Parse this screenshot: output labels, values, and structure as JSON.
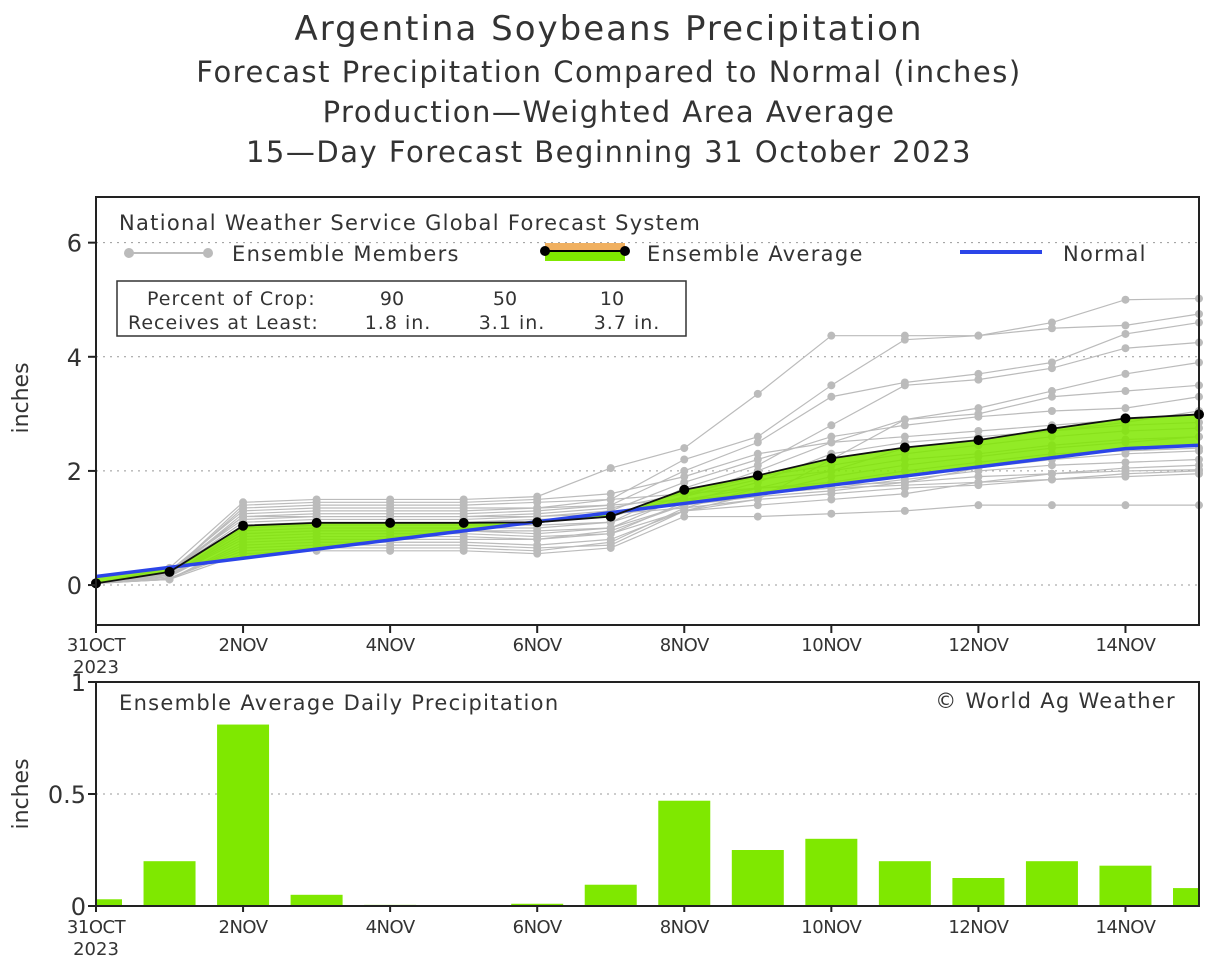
{
  "header": {
    "title": "Argentina Soybeans Precipitation",
    "subtitle1": "Forecast Precipitation Compared to Normal (inches)",
    "subtitle2": "Production—Weighted Area Average",
    "subtitle3": "15—Day Forecast Beginning 31 October 2023"
  },
  "colors": {
    "green": "#7FE800",
    "normal_blue": "#2B45E8",
    "member_gray": "#BBBBBB",
    "avg_orange": "#F0B060",
    "grid": "#999999"
  },
  "chart_data": [
    {
      "type": "line",
      "model_label": "National Weather Service Global Forecast System",
      "legend": {
        "members": "Ensemble Members",
        "average": "Ensemble Average",
        "normal": "Normal"
      },
      "crop_box": {
        "row1_label": "Percent of Crop:",
        "row2_label": "Receives at Least:",
        "percents": [
          "90",
          "50",
          "10"
        ],
        "amounts": [
          "1.8 in.",
          "3.1 in.",
          "3.7 in."
        ]
      },
      "ylabel": "inches",
      "ylim": [
        -0.7,
        6.8
      ],
      "yticks": [
        "0",
        "2",
        "4",
        "6"
      ],
      "xlim": [
        0,
        15
      ],
      "xticks": [
        {
          "x": 0,
          "label": "31OCT",
          "label2": "2023"
        },
        {
          "x": 2,
          "label": "2NOV"
        },
        {
          "x": 4,
          "label": "4NOV"
        },
        {
          "x": 6,
          "label": "6NOV"
        },
        {
          "x": 8,
          "label": "8NOV"
        },
        {
          "x": 10,
          "label": "10NOV"
        },
        {
          "x": 12,
          "label": "12NOV"
        },
        {
          "x": 14,
          "label": "14NOV"
        }
      ],
      "ensemble_average": [
        0.03,
        0.23,
        1.04,
        1.09,
        1.09,
        1.09,
        1.1,
        1.2,
        1.67,
        1.92,
        2.22,
        2.41,
        2.54,
        2.74,
        2.92,
        2.99
      ],
      "normal": [
        0.15,
        0.31,
        0.47,
        0.63,
        0.79,
        0.95,
        1.11,
        1.27,
        1.43,
        1.59,
        1.75,
        1.91,
        2.07,
        2.23,
        2.39,
        2.45
      ],
      "members": [
        [
          0.03,
          0.3,
          1.45,
          1.5,
          1.5,
          1.5,
          1.55,
          2.05,
          2.4,
          3.35,
          4.37,
          4.37,
          4.37,
          4.6,
          5.0,
          5.02
        ],
        [
          0.03,
          0.25,
          1.3,
          1.35,
          1.35,
          1.35,
          1.35,
          1.5,
          2.2,
          2.6,
          3.5,
          4.3,
          4.37,
          4.5,
          4.55,
          4.75
        ],
        [
          0.03,
          0.2,
          1.2,
          1.25,
          1.25,
          1.25,
          1.3,
          1.4,
          2.0,
          2.5,
          3.3,
          3.55,
          3.7,
          3.9,
          4.4,
          4.6
        ],
        [
          0.03,
          0.15,
          1.0,
          1.05,
          1.05,
          1.05,
          1.05,
          1.1,
          1.7,
          2.1,
          2.8,
          3.5,
          3.6,
          3.8,
          4.15,
          4.25
        ],
        [
          0.03,
          0.1,
          0.75,
          0.8,
          0.8,
          0.8,
          0.8,
          0.9,
          1.3,
          1.5,
          2.2,
          2.9,
          3.1,
          3.4,
          3.7,
          3.9
        ],
        [
          0.03,
          0.18,
          0.9,
          0.95,
          0.95,
          0.95,
          0.9,
          1.0,
          1.55,
          2.0,
          2.5,
          2.9,
          3.0,
          3.3,
          3.4,
          3.5
        ],
        [
          0.03,
          0.22,
          1.1,
          1.15,
          1.15,
          1.15,
          1.2,
          1.3,
          1.8,
          2.2,
          2.6,
          2.8,
          2.95,
          3.05,
          3.1,
          3.3
        ],
        [
          0.03,
          0.12,
          0.6,
          0.65,
          0.65,
          0.65,
          0.6,
          0.75,
          1.35,
          1.7,
          2.0,
          2.4,
          2.55,
          2.7,
          2.85,
          3.05
        ],
        [
          0.03,
          0.2,
          1.4,
          1.45,
          1.45,
          1.45,
          1.5,
          1.6,
          1.9,
          2.3,
          2.5,
          2.6,
          2.7,
          2.8,
          2.9,
          3.0
        ],
        [
          0.03,
          0.15,
          0.85,
          0.9,
          0.9,
          0.9,
          0.85,
          0.9,
          1.45,
          1.8,
          2.3,
          2.5,
          2.6,
          2.7,
          2.8,
          2.85
        ],
        [
          0.03,
          0.25,
          1.2,
          1.2,
          1.2,
          1.2,
          1.25,
          1.35,
          1.6,
          1.9,
          2.1,
          2.3,
          2.45,
          2.6,
          2.7,
          2.75
        ],
        [
          0.03,
          0.1,
          0.7,
          0.75,
          0.75,
          0.75,
          0.7,
          0.8,
          1.3,
          1.6,
          1.9,
          2.1,
          2.25,
          2.4,
          2.5,
          2.6
        ],
        [
          0.03,
          0.2,
          1.05,
          1.1,
          1.1,
          1.1,
          1.15,
          1.2,
          1.55,
          1.85,
          2.0,
          2.2,
          2.3,
          2.45,
          2.55,
          2.6
        ],
        [
          0.03,
          0.18,
          0.95,
          1.0,
          1.0,
          1.0,
          1.0,
          1.1,
          1.5,
          1.7,
          1.8,
          2.0,
          2.15,
          2.3,
          2.35,
          2.4
        ],
        [
          0.03,
          0.15,
          0.8,
          0.85,
          0.85,
          0.85,
          0.8,
          0.95,
          1.4,
          1.6,
          1.7,
          1.85,
          2.0,
          2.1,
          2.15,
          2.2
        ],
        [
          0.03,
          0.12,
          0.65,
          0.7,
          0.7,
          0.7,
          0.65,
          0.7,
          1.3,
          1.4,
          1.5,
          1.6,
          1.8,
          1.95,
          2.05,
          2.1
        ],
        [
          0.03,
          0.2,
          1.35,
          1.4,
          1.4,
          1.4,
          1.45,
          1.5,
          1.6,
          1.7,
          1.75,
          1.8,
          1.9,
          1.95,
          2.0,
          2.02
        ],
        [
          0.03,
          0.1,
          0.55,
          0.6,
          0.6,
          0.6,
          0.55,
          0.65,
          1.2,
          1.2,
          1.25,
          1.3,
          1.4,
          1.4,
          1.4,
          1.4
        ],
        [
          0.03,
          0.25,
          1.15,
          1.2,
          1.2,
          1.2,
          1.2,
          1.25,
          1.35,
          1.5,
          1.6,
          1.7,
          1.75,
          1.85,
          1.9,
          1.95
        ],
        [
          0.03,
          0.2,
          1.25,
          1.3,
          1.3,
          1.3,
          1.35,
          1.4,
          1.5,
          1.6,
          1.7,
          1.75,
          1.8,
          1.85,
          1.95,
          2.0
        ],
        [
          0.03,
          0.15,
          0.9,
          0.95,
          0.95,
          0.95,
          0.95,
          1.0,
          1.4,
          1.55,
          1.65,
          1.8,
          2.05,
          2.2,
          2.3,
          2.35
        ]
      ]
    },
    {
      "type": "bar",
      "title": "Ensemble Average Daily Precipitation",
      "credit": "© World Ag Weather",
      "ylabel": "inches",
      "ylim": [
        0,
        1
      ],
      "yticks": [
        "0",
        "0.5",
        "1"
      ],
      "xlim": [
        0,
        15
      ],
      "xticks": [
        {
          "x": 0,
          "label": "31OCT",
          "label2": "2023"
        },
        {
          "x": 2,
          "label": "2NOV"
        },
        {
          "x": 4,
          "label": "4NOV"
        },
        {
          "x": 6,
          "label": "6NOV"
        },
        {
          "x": 8,
          "label": "8NOV"
        },
        {
          "x": 10,
          "label": "10NOV"
        },
        {
          "x": 12,
          "label": "12NOV"
        },
        {
          "x": 14,
          "label": "14NOV"
        }
      ],
      "values": [
        0.03,
        0.2,
        0.81,
        0.05,
        0.005,
        0.003,
        0.01,
        0.095,
        0.47,
        0.25,
        0.3,
        0.2,
        0.125,
        0.2,
        0.18,
        0.08
      ]
    }
  ]
}
